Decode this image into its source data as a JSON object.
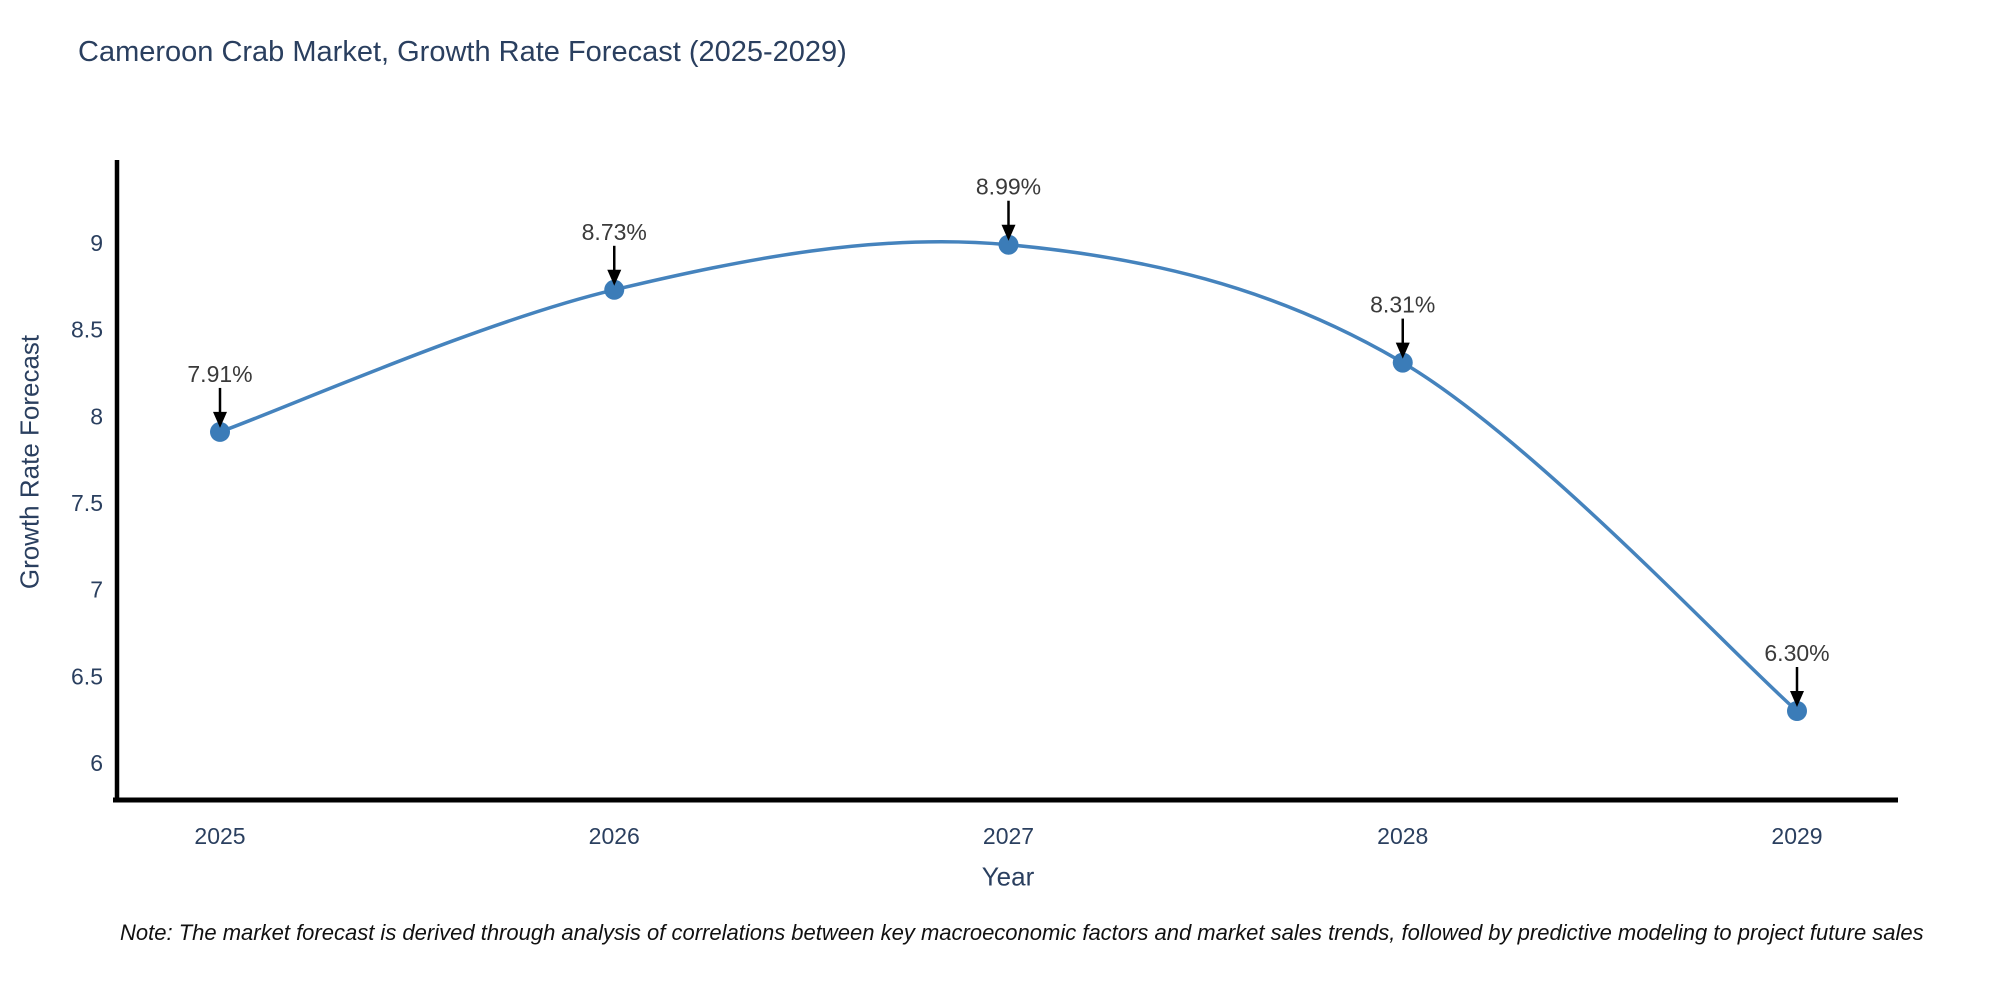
{
  "page": {
    "background_color": "#ffffff"
  },
  "chart_data": {
    "type": "line",
    "title": "Cameroon Crab Market, Growth Rate Forecast (2025-2029)",
    "xlabel": "Year",
    "ylabel": "Growth Rate Forecast",
    "line_shape": "spline",
    "grid": false,
    "legend": "none",
    "categories": [
      "2025",
      "2026",
      "2027",
      "2028",
      "2029"
    ],
    "x": [
      2025,
      2026,
      2027,
      2028,
      2029
    ],
    "series": [
      {
        "name": "Growth Rate Forecast",
        "values": [
          7.91,
          8.73,
          8.99,
          8.31,
          6.3
        ]
      }
    ],
    "point_labels": [
      "7.91%",
      "8.73%",
      "8.99%",
      "8.31%",
      "6.30%"
    ],
    "y_ticks": [
      6,
      6.5,
      7,
      7.5,
      8,
      8.5,
      9
    ],
    "y_tick_labels": [
      "6",
      "6.5",
      "7",
      "7.5",
      "8",
      "8.5",
      "9"
    ],
    "ylim": [
      5.79,
      9.48
    ],
    "xlim": [
      2024.74,
      2029.26
    ],
    "colors": {
      "line": "#4583bd",
      "marker": "#3b7cb8",
      "axis": "#000000",
      "tick_text": "#2a3f5f",
      "annotation_text": "#3a3a3a",
      "annotation_arrow": "#000000",
      "title_text": "#2a3f5f"
    }
  },
  "footnote": "Note: The market forecast is derived through analysis of correlations between key macroeconomic factors and market sales trends, followed by predictive modeling to project future sales"
}
